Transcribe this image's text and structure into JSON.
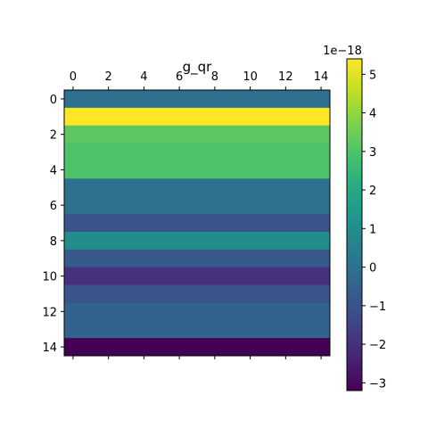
{
  "chart_data": {
    "type": "heatmap",
    "title": "g_qr",
    "x_ticks": [
      "0",
      "2",
      "4",
      "6",
      "8",
      "10",
      "12",
      "14"
    ],
    "y_ticks": [
      "0",
      "2",
      "4",
      "6",
      "8",
      "10",
      "12",
      "14"
    ],
    "xlim": [
      -0.5,
      14.5
    ],
    "ylim": [
      14.5,
      -0.5
    ],
    "rows": 15,
    "cols": 15,
    "row_values": [
      0.0,
      5.4,
      3.2,
      3.0,
      3.0,
      0.0,
      0.0,
      -1.0,
      1.0,
      -0.8,
      -2.0,
      -1.0,
      -0.5,
      -0.5,
      -3.2
    ],
    "colorbar": {
      "min": -3.2,
      "max": 5.4,
      "ticks": [
        "−3",
        "−2",
        "−1",
        "0",
        "1",
        "2",
        "3",
        "4",
        "5"
      ],
      "tick_values": [
        -3,
        -2,
        -1,
        0,
        1,
        2,
        3,
        4,
        5
      ],
      "offset_label": "1e−18",
      "colormap": "viridis"
    },
    "x_ticks_position": "top"
  }
}
